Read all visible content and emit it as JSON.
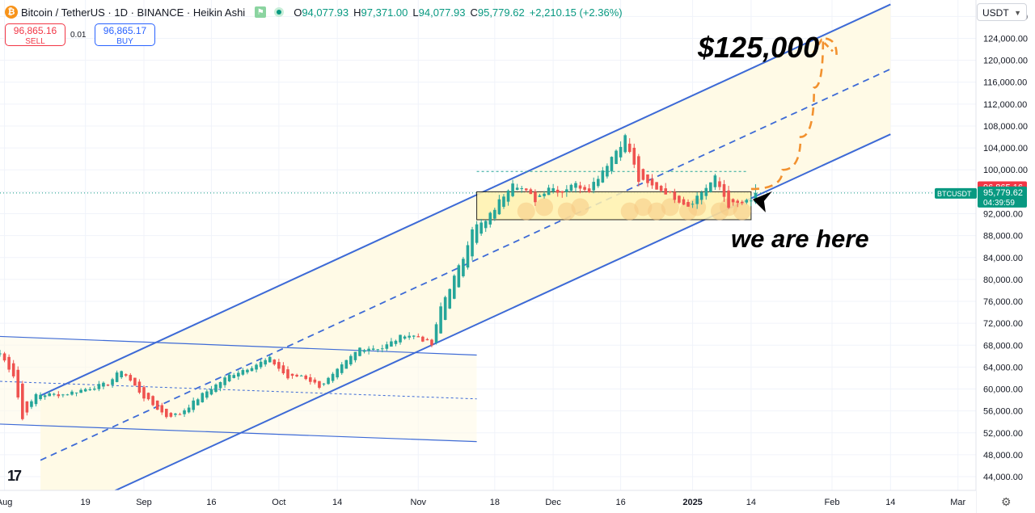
{
  "header": {
    "symbol": "Bitcoin / TetherUS · 1D · BINANCE · Heikin Ashi",
    "o_label": "O",
    "o_value": "94,077.93",
    "h_label": "H",
    "h_value": "97,371.00",
    "l_label": "L",
    "l_value": "94,077.93",
    "c_label": "C",
    "c_value": "95,779.62",
    "change": "+2,210.15 (+2.36%)"
  },
  "trade": {
    "sell_price": "96,865.16",
    "sell_label": "SELL",
    "spread": "0.01",
    "buy_price": "96,865.17",
    "buy_label": "BUY"
  },
  "currency": "USDT",
  "price_tags": {
    "symbol": "BTCUSDT",
    "ask": "96,865.16",
    "last": "95,779.62",
    "countdown": "04:39:59"
  },
  "annotations": {
    "target": "$125,000",
    "here": "we are here"
  },
  "colors": {
    "up": "#26a69a",
    "down": "#ef5350",
    "channel": "#3d6ad6",
    "target_path": "#f2912f",
    "ask_tag": "#f23645",
    "last_tag": "#089981",
    "channel_fill": "#fffae6",
    "support_zone": "#fff2b0"
  },
  "chart_data": {
    "type": "candlestick",
    "y_axis": {
      "range": [
        41500,
        131000
      ],
      "ticks": [
        44000,
        48000,
        52000,
        56000,
        60000,
        64000,
        68000,
        72000,
        76000,
        80000,
        84000,
        88000,
        92000,
        96000,
        100000,
        104000,
        108000,
        112000,
        116000,
        120000,
        124000,
        128000
      ],
      "tick_labels": [
        "44,000.00",
        "48,000.00",
        "52,000.00",
        "56,000.00",
        "60,000.00",
        "64,000.00",
        "68,000.00",
        "72,000.00",
        "76,000.00",
        "80,000.00",
        "84,000.00",
        "88,000.00",
        "92,000.00",
        "96,000.00",
        "100,000.00",
        "104,000.00",
        "108,000.00",
        "112,000.00",
        "116,000.00",
        "120,000.00",
        "124,000.00",
        "128,000.00"
      ]
    },
    "x_axis": {
      "start": "2024-07-31",
      "end": "2025-03-05",
      "ticks": [
        "2024-08-01",
        "2024-08-19",
        "2024-09-01",
        "2024-09-16",
        "2024-10-01",
        "2024-10-14",
        "2024-11-01",
        "2024-11-18",
        "2024-12-01",
        "2024-12-16",
        "2025-01-01",
        "2025-01-14",
        "2025-02-01",
        "2025-02-14",
        "2025-03-01"
      ],
      "tick_labels": [
        "Aug",
        "19",
        "Sep",
        "16",
        "Oct",
        "14",
        "Nov",
        "18",
        "Dec",
        "16",
        "2025",
        "14",
        "Feb",
        "14",
        "Mar"
      ]
    },
    "anchors": [
      [
        "2024-07-31",
        66500
      ],
      [
        "2024-08-03",
        62500
      ],
      [
        "2024-08-05",
        54500
      ],
      [
        "2024-08-08",
        59000
      ],
      [
        "2024-08-14",
        59000
      ],
      [
        "2024-08-24",
        61000
      ],
      [
        "2024-08-27",
        63500
      ],
      [
        "2024-09-01",
        58500
      ],
      [
        "2024-09-06",
        55000
      ],
      [
        "2024-09-09",
        55500
      ],
      [
        "2024-09-14",
        59000
      ],
      [
        "2024-09-20",
        62500
      ],
      [
        "2024-09-29",
        65500
      ],
      [
        "2024-10-03",
        62000
      ],
      [
        "2024-10-06",
        62500
      ],
      [
        "2024-10-10",
        60500
      ],
      [
        "2024-10-13",
        62500
      ],
      [
        "2024-10-19",
        67500
      ],
      [
        "2024-10-24",
        67500
      ],
      [
        "2024-10-29",
        70000
      ],
      [
        "2024-11-01",
        69500
      ],
      [
        "2024-11-04",
        68000
      ],
      [
        "2024-11-06",
        75000
      ],
      [
        "2024-11-11",
        84000
      ],
      [
        "2024-11-13",
        89500
      ],
      [
        "2024-11-16",
        90500
      ],
      [
        "2024-11-22",
        98000
      ],
      [
        "2024-11-27",
        94500
      ],
      [
        "2024-11-30",
        97000
      ],
      [
        "2024-12-03",
        96000
      ],
      [
        "2024-12-05",
        97500
      ],
      [
        "2024-12-09",
        96500
      ],
      [
        "2024-12-12",
        100000
      ],
      [
        "2024-12-17",
        106000
      ],
      [
        "2024-12-20",
        98000
      ],
      [
        "2024-12-26",
        96000
      ],
      [
        "2024-12-31",
        93500
      ],
      [
        "2025-01-06",
        98500
      ],
      [
        "2025-01-09",
        93500
      ],
      [
        "2025-01-14",
        94200
      ],
      [
        "2025-01-15",
        95779.62
      ]
    ],
    "heikin_ashi_last": {
      "open": 94077.93,
      "high": 97371.0,
      "low": 94077.93,
      "close": 95779.62,
      "change": 2210.15,
      "change_pct": 2.36
    },
    "bid_line": 95779.62,
    "ask_line": 96865.16,
    "ascending_channel": {
      "upper": [
        [
          "2024-08-09",
          58800
        ],
        [
          "2025-02-14",
          130200
        ]
      ],
      "median": [
        [
          "2024-08-09",
          47000
        ],
        [
          "2025-02-14",
          118400
        ]
      ],
      "lower": [
        [
          "2024-08-09",
          35200
        ],
        [
          "2025-02-14",
          106500
        ]
      ]
    },
    "old_descending_channel": {
      "upper": [
        [
          "2024-07-31",
          69600
        ],
        [
          "2024-11-14",
          66200
        ]
      ],
      "median": [
        [
          "2024-07-31",
          61400
        ],
        [
          "2024-11-14",
          58200
        ]
      ],
      "lower": [
        [
          "2024-07-31",
          53600
        ],
        [
          "2024-11-14",
          50400
        ]
      ]
    },
    "resistance_dotted": {
      "price": 99700,
      "from": "2024-11-14",
      "to": "2025-01-13"
    },
    "support_box": {
      "from": "2024-11-14",
      "to": "2025-01-14",
      "top": 96000,
      "bottom": 90900
    },
    "projected_path": [
      [
        "2025-01-14",
        96500
      ],
      [
        "2025-01-21",
        100000
      ],
      [
        "2025-01-25",
        106000
      ],
      [
        "2025-01-28",
        115000
      ],
      [
        "2025-01-30",
        124000
      ],
      [
        "2025-02-02",
        121000
      ]
    ],
    "target_price": 125000
  }
}
